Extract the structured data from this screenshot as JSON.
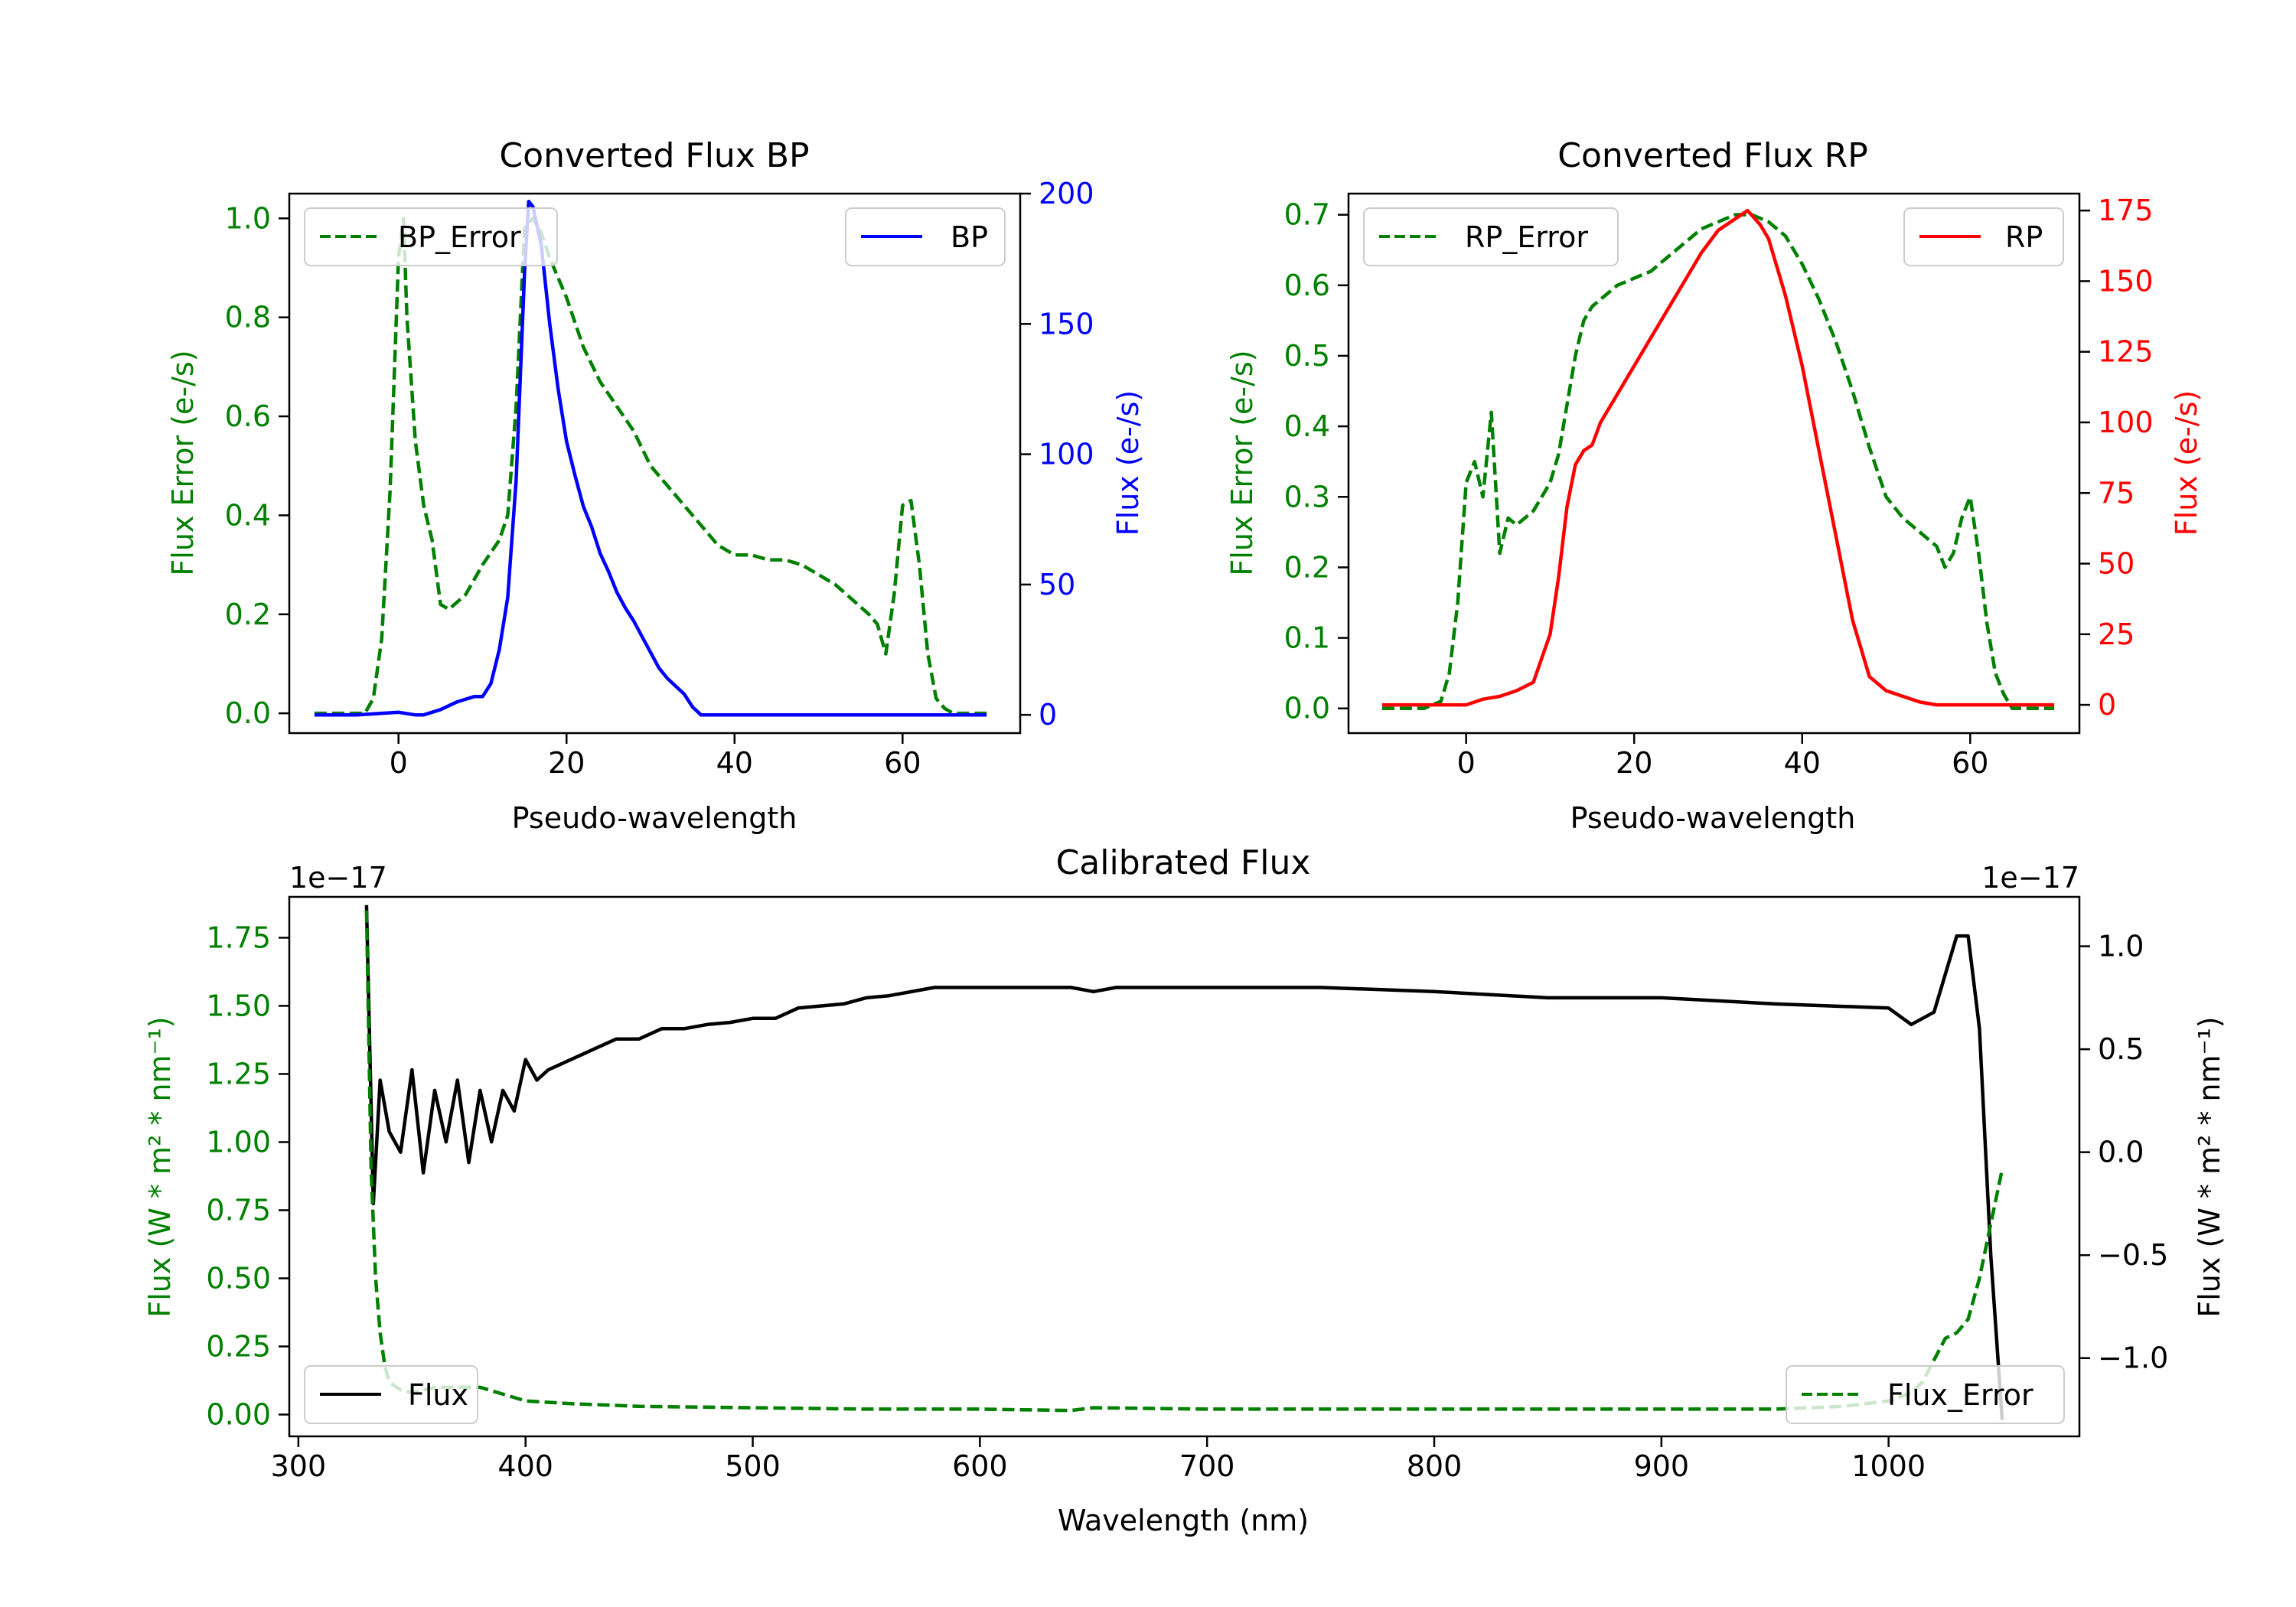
{
  "colors": {
    "error": "#008000",
    "bp": "#0000ff",
    "rp": "#ff0000",
    "flux": "#000000",
    "axis": "#000000",
    "legend_border": "#cccccc"
  },
  "chart_data": [
    {
      "id": "bp",
      "type": "line",
      "title": "Converted Flux BP",
      "xlabel": "Pseudo-wavelength",
      "ylabel_left": "Flux Error (e-/s)",
      "ylabel_right": "Flux (e-/s)",
      "xlim": [
        -13,
        74
      ],
      "ylim_left": [
        -0.04,
        1.05
      ],
      "ylim_right": [
        -7,
        200
      ],
      "xticks": [
        0,
        20,
        40,
        60
      ],
      "xtick_labels": [
        "0",
        "20",
        "40",
        "60"
      ],
      "yticks_left": [
        0.0,
        0.2,
        0.4,
        0.6,
        0.8,
        1.0
      ],
      "ytick_labels_left": [
        "0.0",
        "0.2",
        "0.4",
        "0.6",
        "0.8",
        "1.0"
      ],
      "yticks_right": [
        0,
        50,
        100,
        150,
        200
      ],
      "ytick_labels_right": [
        "0",
        "50",
        "100",
        "150",
        "200"
      ],
      "legend_left": "BP_Error",
      "legend_right": "BP",
      "series": [
        {
          "name": "BP_Error",
          "axis": "left",
          "style": "dashed",
          "x": [
            -10,
            -6,
            -4,
            -3,
            -2,
            -1,
            0,
            0.6,
            1,
            2,
            3,
            4,
            5,
            6,
            8,
            10,
            12,
            13,
            14,
            15,
            16,
            17,
            18,
            20,
            22,
            24,
            26,
            28,
            30,
            32,
            34,
            36,
            38,
            40,
            42,
            44,
            46,
            48,
            50,
            52,
            54,
            56,
            57,
            58,
            59,
            60,
            61,
            62,
            63,
            64,
            65,
            66,
            68,
            70
          ],
          "y": [
            0,
            0,
            0,
            0.03,
            0.15,
            0.45,
            0.92,
            1.0,
            0.8,
            0.55,
            0.42,
            0.35,
            0.22,
            0.21,
            0.24,
            0.3,
            0.35,
            0.4,
            0.62,
            0.98,
            1.0,
            0.97,
            0.92,
            0.84,
            0.74,
            0.67,
            0.62,
            0.57,
            0.5,
            0.46,
            0.42,
            0.38,
            0.34,
            0.32,
            0.32,
            0.31,
            0.31,
            0.3,
            0.28,
            0.26,
            0.23,
            0.2,
            0.18,
            0.12,
            0.24,
            0.42,
            0.43,
            0.3,
            0.12,
            0.03,
            0.01,
            0,
            0,
            0
          ]
        },
        {
          "name": "BP",
          "axis": "right",
          "style": "solid",
          "x": [
            -10,
            -5,
            0,
            2,
            3,
            5,
            7,
            9,
            10,
            11,
            12,
            13,
            14,
            15,
            15.5,
            16,
            17,
            18,
            19,
            20,
            21,
            22,
            23,
            24,
            25,
            26,
            27,
            28,
            29,
            30,
            31,
            32,
            33,
            34,
            35,
            36,
            37,
            38,
            40,
            42,
            44,
            46,
            48,
            50,
            55,
            60,
            65,
            70
          ],
          "y": [
            0,
            0,
            1,
            0,
            0,
            2,
            5,
            7,
            7,
            12,
            25,
            45,
            90,
            170,
            197,
            195,
            180,
            150,
            125,
            105,
            92,
            80,
            72,
            62,
            55,
            47,
            41,
            36,
            30,
            24,
            18,
            14,
            11,
            8,
            3,
            0,
            0,
            0,
            0,
            0,
            0,
            0,
            0,
            0,
            0,
            0,
            0,
            0
          ]
        }
      ]
    },
    {
      "id": "rp",
      "type": "line",
      "title": "Converted Flux RP",
      "xlabel": "Pseudo-wavelength",
      "ylabel_left": "Flux Error (e-/s)",
      "ylabel_right": "Flux (e-/s)",
      "xlim": [
        -14,
        73
      ],
      "ylim_left": [
        -0.035,
        0.73
      ],
      "ylim_right": [
        -10,
        181
      ],
      "xticks": [
        0,
        20,
        40,
        60
      ],
      "xtick_labels": [
        "0",
        "20",
        "40",
        "60"
      ],
      "yticks_left": [
        0.0,
        0.1,
        0.2,
        0.3,
        0.4,
        0.5,
        0.6,
        0.7
      ],
      "ytick_labels_left": [
        "0.0",
        "0.1",
        "0.2",
        "0.3",
        "0.4",
        "0.5",
        "0.6",
        "0.7"
      ],
      "yticks_right": [
        0,
        25,
        50,
        75,
        100,
        125,
        150,
        175
      ],
      "ytick_labels_right": [
        "0",
        "25",
        "50",
        "75",
        "100",
        "125",
        "150",
        "175"
      ],
      "legend_left": "RP_Error",
      "legend_right": "RP",
      "series": [
        {
          "name": "RP_Error",
          "axis": "left",
          "style": "dashed",
          "x": [
            -10,
            -5,
            -3,
            -2,
            -1,
            0,
            1,
            2,
            3,
            4,
            5,
            6,
            7,
            8,
            9,
            10,
            11,
            12,
            13,
            14,
            15,
            16,
            17,
            18,
            20,
            22,
            24,
            26,
            28,
            30,
            32,
            34,
            36,
            38,
            40,
            42,
            44,
            46,
            48,
            50,
            52,
            54,
            56,
            57,
            58,
            59,
            60,
            61,
            62,
            63,
            64,
            65,
            70
          ],
          "y": [
            0,
            0,
            0.01,
            0.05,
            0.15,
            0.32,
            0.35,
            0.3,
            0.42,
            0.22,
            0.27,
            0.26,
            0.27,
            0.28,
            0.3,
            0.32,
            0.36,
            0.43,
            0.5,
            0.55,
            0.57,
            0.58,
            0.59,
            0.6,
            0.61,
            0.62,
            0.64,
            0.66,
            0.68,
            0.69,
            0.7,
            0.7,
            0.69,
            0.67,
            0.63,
            0.58,
            0.52,
            0.45,
            0.37,
            0.3,
            0.27,
            0.25,
            0.23,
            0.2,
            0.22,
            0.27,
            0.3,
            0.22,
            0.12,
            0.05,
            0.02,
            0,
            0
          ]
        },
        {
          "name": "RP",
          "axis": "right",
          "style": "solid",
          "x": [
            -10,
            -5,
            0,
            2,
            4,
            6,
            8,
            10,
            11,
            12,
            13,
            14,
            15,
            16,
            18,
            20,
            22,
            24,
            26,
            28,
            30,
            32,
            33.5,
            35,
            36,
            38,
            40,
            42,
            44,
            46,
            48,
            50,
            52,
            54,
            56,
            58,
            60,
            62,
            65,
            70
          ],
          "y": [
            0,
            0,
            0,
            2,
            3,
            5,
            8,
            25,
            45,
            70,
            85,
            90,
            92,
            100,
            110,
            120,
            130,
            140,
            150,
            160,
            168,
            172,
            175,
            170,
            165,
            145,
            120,
            90,
            60,
            30,
            10,
            5,
            3,
            1,
            0,
            0,
            0,
            0,
            0,
            0
          ]
        }
      ]
    },
    {
      "id": "calibrated",
      "type": "line",
      "title": "Calibrated Flux",
      "xlabel": "Wavelength (nm)",
      "ylabel_left": "Flux (W * m² * nm⁻¹)",
      "ylabel_right": "Flux (W * m² * nm⁻¹)",
      "offset_left": "1e−17",
      "offset_right": "1e−17",
      "xlim": [
        296,
        1084
      ],
      "ylim_left": [
        -0.08,
        1.9
      ],
      "ylim_right": [
        -1.38,
        1.24
      ],
      "xticks": [
        300,
        400,
        500,
        600,
        700,
        800,
        900,
        1000
      ],
      "xtick_labels": [
        "300",
        "400",
        "500",
        "600",
        "700",
        "800",
        "900",
        "1000"
      ],
      "yticks_left": [
        0.0,
        0.25,
        0.5,
        0.75,
        1.0,
        1.25,
        1.5,
        1.75
      ],
      "ytick_labels_left": [
        "0.00",
        "0.25",
        "0.50",
        "0.75",
        "1.00",
        "1.25",
        "1.50",
        "1.75"
      ],
      "yticks_right": [
        -1.0,
        -0.5,
        0.0,
        0.5,
        1.0
      ],
      "ytick_labels_right": [
        "−1.0",
        "−0.5",
        "0.0",
        "0.5",
        "1.0"
      ],
      "legend_left": "Flux",
      "legend_right": "Flux_Error",
      "series": [
        {
          "name": "Flux",
          "axis": "right",
          "style": "solid",
          "x": [
            330,
            333,
            336,
            340,
            345,
            350,
            355,
            360,
            365,
            370,
            375,
            380,
            385,
            390,
            395,
            400,
            405,
            410,
            420,
            430,
            440,
            450,
            460,
            470,
            480,
            490,
            500,
            510,
            520,
            540,
            550,
            560,
            580,
            600,
            620,
            640,
            650,
            660,
            680,
            700,
            750,
            800,
            850,
            900,
            950,
            1000,
            1010,
            1020,
            1030,
            1035,
            1040,
            1045,
            1050
          ],
          "y": [
            1.2,
            -0.25,
            0.35,
            0.1,
            0.0,
            0.4,
            -0.1,
            0.3,
            0.05,
            0.35,
            -0.05,
            0.3,
            0.05,
            0.3,
            0.2,
            0.45,
            0.35,
            0.4,
            0.45,
            0.5,
            0.55,
            0.55,
            0.6,
            0.6,
            0.62,
            0.63,
            0.65,
            0.65,
            0.7,
            0.72,
            0.75,
            0.76,
            0.8,
            0.8,
            0.8,
            0.8,
            0.78,
            0.8,
            0.8,
            0.8,
            0.8,
            0.78,
            0.75,
            0.75,
            0.72,
            0.7,
            0.62,
            0.68,
            1.05,
            1.05,
            0.6,
            -0.5,
            -1.3
          ]
        },
        {
          "name": "Flux_Error",
          "axis": "left",
          "style": "dashed",
          "x": [
            330,
            332,
            334,
            336,
            338,
            340,
            345,
            350,
            360,
            380,
            400,
            420,
            450,
            500,
            550,
            600,
            640,
            650,
            700,
            750,
            800,
            900,
            950,
            980,
            1000,
            1010,
            1015,
            1020,
            1025,
            1030,
            1035,
            1040,
            1045,
            1050
          ],
          "y": [
            1.85,
            0.9,
            0.5,
            0.3,
            0.18,
            0.12,
            0.09,
            0.08,
            0.1,
            0.1,
            0.05,
            0.04,
            0.03,
            0.025,
            0.02,
            0.02,
            0.015,
            0.025,
            0.02,
            0.02,
            0.02,
            0.02,
            0.02,
            0.03,
            0.05,
            0.08,
            0.12,
            0.2,
            0.28,
            0.3,
            0.35,
            0.5,
            0.7,
            0.9
          ]
        }
      ]
    }
  ]
}
